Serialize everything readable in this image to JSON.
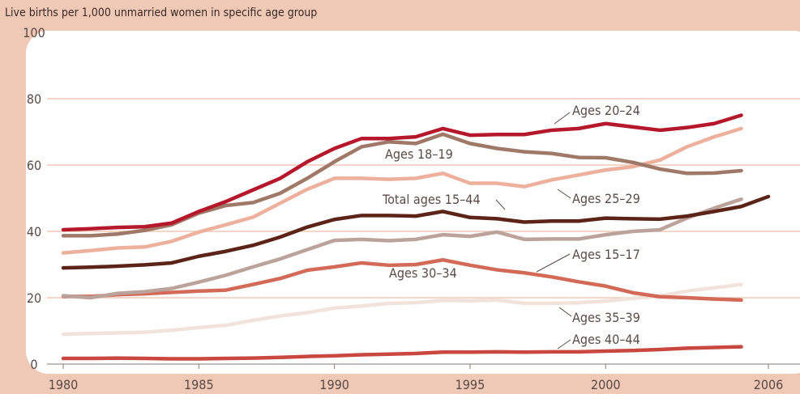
{
  "chart_data": {
    "type": "line",
    "subtitle": "Live births per 1,000 unmarried women in specific age group",
    "x": [
      1980,
      1981,
      1982,
      1983,
      1984,
      1985,
      1986,
      1987,
      1988,
      1989,
      1990,
      1991,
      1992,
      1993,
      1994,
      1995,
      1996,
      1997,
      1998,
      1999,
      2000,
      2001,
      2002,
      2003,
      2004,
      2005,
      2006
    ],
    "xlim": [
      1980,
      2006
    ],
    "xticks": [
      1980,
      1985,
      1990,
      1995,
      2000,
      2006
    ],
    "ylim": [
      0,
      100
    ],
    "yticks": [
      0,
      20,
      40,
      60,
      80,
      100
    ],
    "series": [
      {
        "name": "Ages 20–24",
        "color": "#b5172b",
        "values": [
          40.5,
          40.8,
          41.2,
          41.4,
          42.5,
          46,
          49,
          52.5,
          56,
          61,
          65,
          68,
          68,
          68.5,
          71,
          69,
          69.2,
          69.2,
          70.5,
          71,
          72.5,
          71.5,
          70.5,
          71.3,
          72.5,
          75,
          null
        ]
      },
      {
        "name": "Ages 18–19",
        "color": "#a07868",
        "values": [
          38.7,
          38.7,
          39.2,
          40.3,
          42,
          45.5,
          47.8,
          48.7,
          51.5,
          56,
          61,
          65.5,
          67,
          66.5,
          69.3,
          66.5,
          65,
          64,
          63.5,
          62.3,
          62.2,
          60.8,
          58.8,
          57.5,
          57.6,
          58.3,
          null
        ]
      },
      {
        "name": "Ages 25–29",
        "color": "#edb09c",
        "values": [
          33.5,
          34.2,
          35,
          35.3,
          37,
          39.8,
          42,
          44.3,
          48.5,
          52.7,
          56,
          56,
          55.7,
          56,
          57.5,
          54.5,
          54.5,
          53.5,
          55.5,
          57,
          58.5,
          59.5,
          61.5,
          65.5,
          68.5,
          71,
          null
        ]
      },
      {
        "name": "Total ages 15–44",
        "color": "#5c2418",
        "values": [
          29,
          29.2,
          29.5,
          29.9,
          30.5,
          32.5,
          34,
          35.8,
          38.3,
          41.3,
          43.6,
          44.8,
          44.8,
          44.6,
          46,
          44.2,
          43.8,
          42.8,
          43.1,
          43.1,
          44,
          43.8,
          43.7,
          44.6,
          46,
          47.5,
          50.5
        ]
      },
      {
        "name": "Ages 30–34",
        "color": "#bba39b",
        "values": [
          20.6,
          20,
          21.3,
          21.8,
          22.8,
          24.7,
          26.8,
          29.3,
          31.7,
          34.5,
          37.3,
          37.6,
          37.2,
          37.6,
          39,
          38.5,
          39.8,
          37.6,
          37.7,
          37.7,
          39,
          40,
          40.5,
          44,
          47,
          49.7,
          null
        ]
      },
      {
        "name": "Ages 15–17",
        "color": "#d36a58",
        "values": [
          20.4,
          20.4,
          20.9,
          21.2,
          21.6,
          22,
          22.3,
          24,
          25.8,
          28.3,
          29.3,
          30.5,
          29.8,
          30,
          31.4,
          29.8,
          28.4,
          27.5,
          26.3,
          24.8,
          23.5,
          21.5,
          20.3,
          20,
          19.6,
          19.3,
          null
        ]
      },
      {
        "name": "Ages 35–39",
        "color": "#f1e2dc",
        "values": [
          9,
          9.2,
          9.4,
          9.6,
          10.2,
          11,
          11.7,
          13.2,
          14.5,
          15.5,
          16.9,
          17.5,
          18.3,
          18.5,
          19.2,
          19.1,
          19.3,
          18.3,
          18.3,
          18.5,
          19,
          19.8,
          20.5,
          22,
          23,
          24,
          null
        ]
      },
      {
        "name": "Ages 40–44",
        "color": "#c84840",
        "values": [
          1.7,
          1.7,
          1.8,
          1.7,
          1.6,
          1.6,
          1.7,
          1.8,
          2.0,
          2.3,
          2.5,
          2.8,
          3.0,
          3.2,
          3.6,
          3.6,
          3.7,
          3.6,
          3.7,
          3.7,
          3.9,
          4.1,
          4.4,
          4.8,
          5.0,
          5.2,
          null
        ]
      }
    ]
  }
}
